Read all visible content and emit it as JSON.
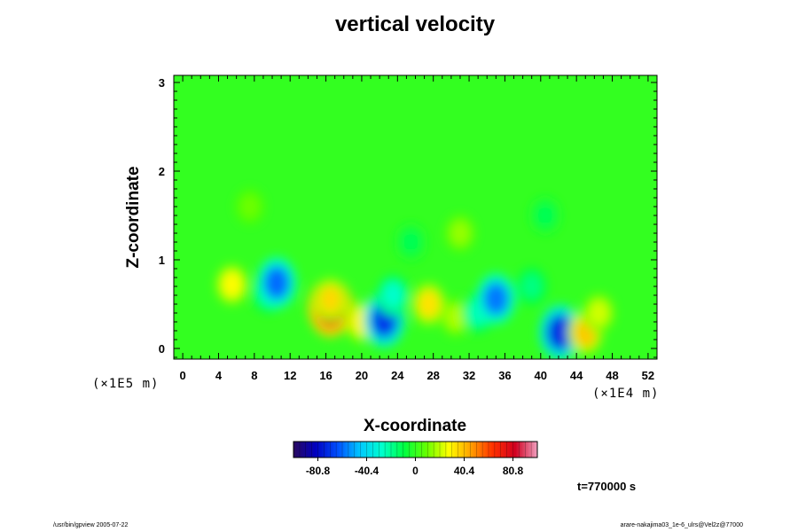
{
  "chart_data": {
    "type": "heatmap",
    "title": "vertical velocity",
    "xlabel": "X-coordinate",
    "ylabel": "Z-coordinate",
    "x_multiplier": "(×1E4 m)",
    "y_multiplier": "(×1E5 m)",
    "xlim": [
      -1,
      53
    ],
    "ylim": [
      -0.12,
      3.08
    ],
    "x_ticks": [
      "0",
      "4",
      "8",
      "12",
      "16",
      "20",
      "24",
      "28",
      "32",
      "36",
      "40",
      "44",
      "48",
      "52"
    ],
    "y_ticks": [
      "0",
      "1",
      "2",
      "3"
    ],
    "background_value": 0,
    "features": [
      {
        "x": 5.5,
        "z": 0.72,
        "value": 28
      },
      {
        "x": 9.5,
        "z": 0.62,
        "value": -22
      },
      {
        "x": 10.5,
        "z": 0.74,
        "value": -60
      },
      {
        "x": 16.5,
        "z": 0.46,
        "value": 82
      },
      {
        "x": 16.5,
        "z": 0.55,
        "value": 35
      },
      {
        "x": 20.0,
        "z": 0.3,
        "value": 30
      },
      {
        "x": 22.5,
        "z": 0.32,
        "value": -70
      },
      {
        "x": 23.5,
        "z": 0.6,
        "value": -28
      },
      {
        "x": 27.5,
        "z": 0.5,
        "value": 33
      },
      {
        "x": 30.5,
        "z": 0.35,
        "value": 18
      },
      {
        "x": 33.0,
        "z": 0.4,
        "value": -25
      },
      {
        "x": 35.0,
        "z": 0.56,
        "value": -58
      },
      {
        "x": 39.0,
        "z": 0.7,
        "value": -18
      },
      {
        "x": 40.5,
        "z": 1.5,
        "value": -12
      },
      {
        "x": 42.2,
        "z": 0.18,
        "value": -72
      },
      {
        "x": 45.0,
        "z": 0.18,
        "value": 38
      },
      {
        "x": 46.5,
        "z": 0.4,
        "value": 22
      },
      {
        "x": 25.5,
        "z": 1.2,
        "value": -12
      },
      {
        "x": 31.0,
        "z": 1.3,
        "value": 15
      },
      {
        "x": 7.5,
        "z": 1.6,
        "value": 10
      }
    ],
    "colorbar": {
      "ticks": [
        "-80.8",
        "-40.4",
        "0",
        "40.4",
        "80.8"
      ],
      "tick_values": [
        -80.8,
        -40.4,
        0,
        40.4,
        80.8
      ],
      "range": [
        -101,
        101
      ],
      "colors": [
        "#2a0a5e",
        "#0000c0",
        "#0050ff",
        "#00c8ff",
        "#00ffcc",
        "#00ff40",
        "#66ff00",
        "#ffff00",
        "#ffa000",
        "#ff3000",
        "#d00020",
        "#f0a0c0"
      ]
    },
    "time_label": "t=770000 s"
  },
  "footer": {
    "left": "/usr/bin/gpview 2005-07-22",
    "right": "arare-nakajima03_1e-6_ulrs@Vel2z@77000"
  }
}
